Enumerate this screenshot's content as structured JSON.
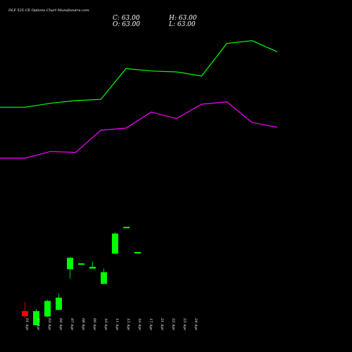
{
  "chart_data": {
    "type": "candlestick",
    "title": "DLF 525 CE Options Chart Munafasutra.com",
    "ohlc_summary": {
      "c": "C: 63.00",
      "h": "H: 63.00",
      "o": "O: 63.00",
      "l": "L: 63.00"
    },
    "categories": [
      "01 Apr",
      "02 Apr",
      "03 Apr",
      "04 Apr",
      "07 Apr",
      "08 Apr",
      "09 Apr",
      "10 Apr",
      "11 Apr",
      "15 Apr",
      "16 Apr",
      "17 Apr",
      "21 Apr",
      "22 Apr",
      "23 Apr",
      "24 Apr"
    ],
    "candles": [
      {
        "x": "01 Apr",
        "o": 43.5,
        "h": 46.5,
        "l": 41.2,
        "c": 41.8,
        "color": "#ff0000"
      },
      {
        "x": "02 Apr",
        "o": 38.8,
        "h": 44.2,
        "l": 38.8,
        "c": 43.5,
        "color": "#00ff00"
      },
      {
        "x": "03 Apr",
        "o": 41.7,
        "h": 47.3,
        "l": 41.5,
        "c": 46.9,
        "color": "#00ff00"
      },
      {
        "x": "04 Apr",
        "o": 43.9,
        "h": 49.3,
        "l": 43.9,
        "c": 48.0,
        "color": "#00ff00"
      },
      {
        "x": "07 Apr",
        "o": 57.5,
        "h": 61.6,
        "l": 54.4,
        "c": 61.3,
        "color": "#00ff00"
      },
      {
        "x": "08 Apr",
        "o": 59.2,
        "h": 59.2,
        "l": 59.2,
        "c": 59.2,
        "color": "#00ff00"
      },
      {
        "x": "09 Apr",
        "o": 57.7,
        "h": 60.1,
        "l": 57.7,
        "c": 58.3,
        "color": "#00ff00"
      },
      {
        "x": "10 Apr",
        "o": 52.6,
        "h": 57.7,
        "l": 52.6,
        "c": 56.5,
        "color": "#00ff00"
      },
      {
        "x": "11 Apr",
        "o": 62.7,
        "h": 69.8,
        "l": 62.5,
        "c": 69.4,
        "color": "#00ff00"
      },
      {
        "x": "15 Apr",
        "o": 71.4,
        "h": 71.4,
        "l": 71.4,
        "c": 71.4,
        "color": "#00ff00"
      },
      {
        "x": "16 Apr",
        "o": 63.0,
        "h": 63.0,
        "l": 63.0,
        "c": 63.0,
        "color": "#00ff00"
      }
    ],
    "lines": [
      {
        "color": "#00ff00",
        "values": [
          111.6,
          111.6,
          112.9,
          113.8,
          114.2,
          124.5,
          123.7,
          123.4,
          122.0,
          132.9,
          133.8,
          130.1
        ]
      },
      {
        "color": "#ff00ff",
        "values": [
          94.6,
          94.6,
          96.8,
          96.5,
          103.9,
          104.6,
          110.0,
          107.8,
          112.6,
          113.4,
          106.5,
          104.9
        ]
      }
    ],
    "ylim": [
      34.55,
      147.4
    ],
    "grid": false
  }
}
